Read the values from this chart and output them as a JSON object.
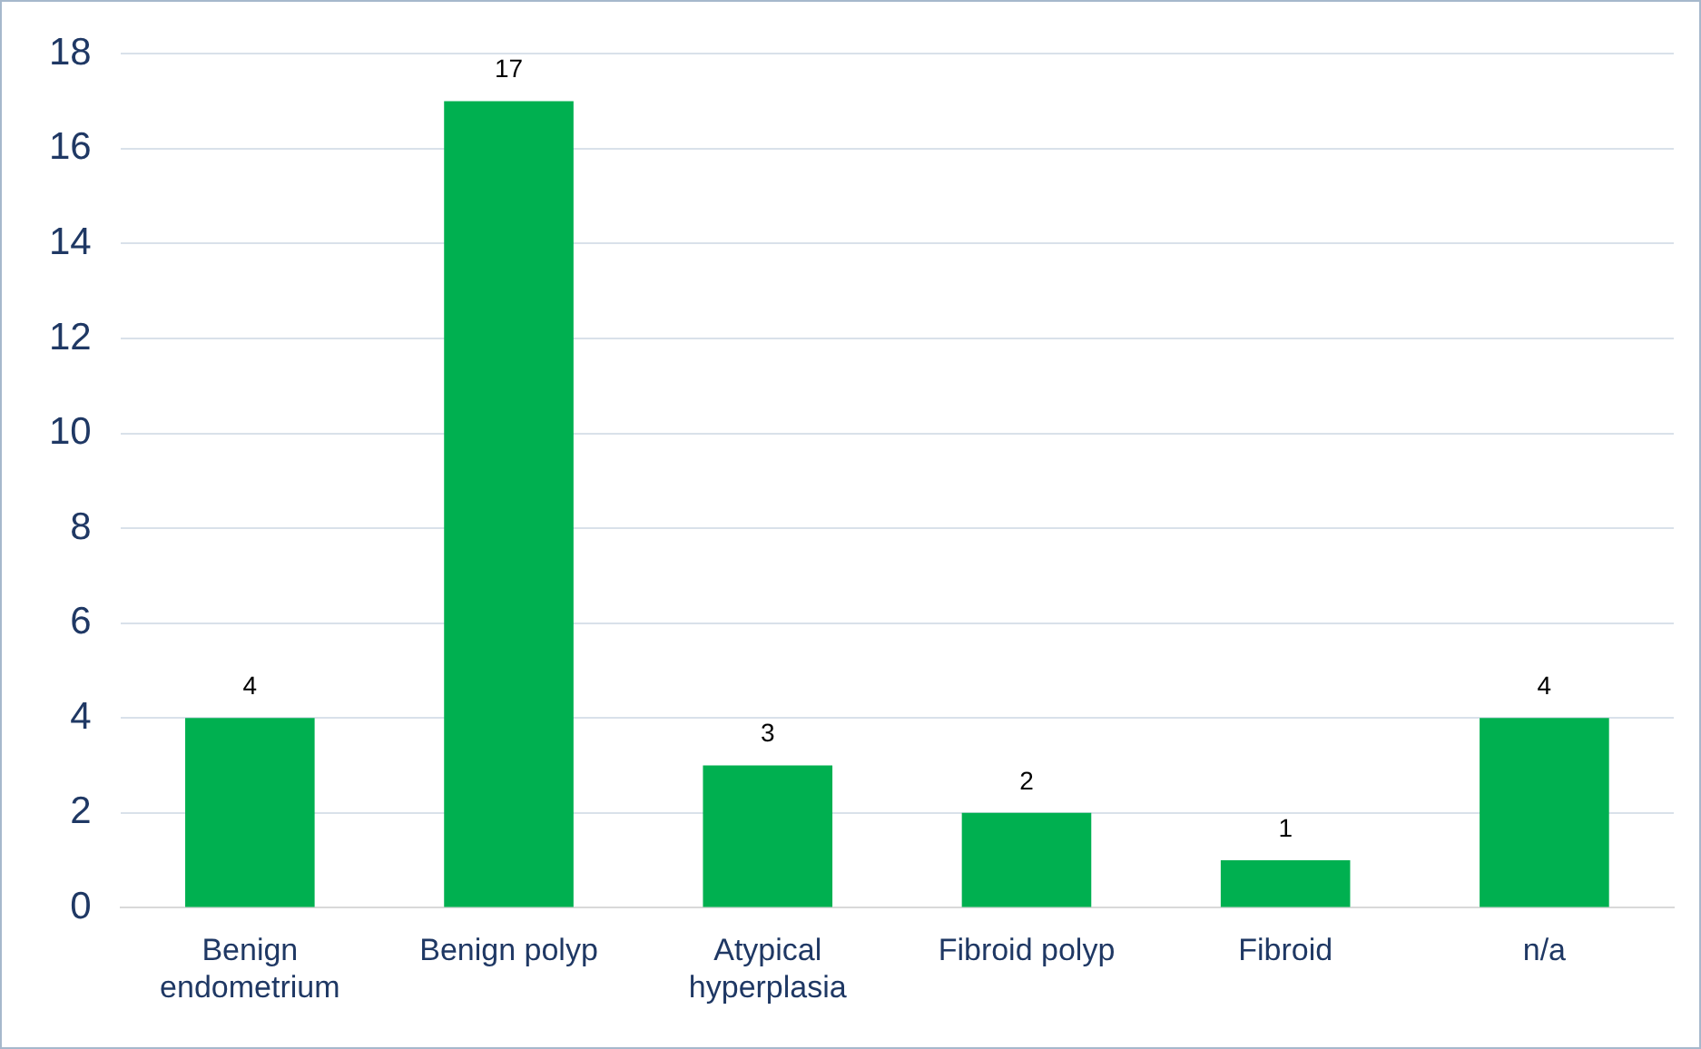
{
  "chart_data": {
    "type": "bar",
    "categories": [
      "Benign endometrium",
      "Benign polyp",
      "Atypical hyperplasia",
      "Fibroid polyp",
      "Fibroid",
      "n/a"
    ],
    "values": [
      4,
      17,
      3,
      2,
      1,
      4
    ],
    "color": "#00b050",
    "ylim": [
      0,
      18
    ],
    "yticks": [
      0,
      2,
      4,
      6,
      8,
      10,
      12,
      14,
      16,
      18
    ],
    "grid": "y",
    "data_labels": true,
    "legend": false
  }
}
